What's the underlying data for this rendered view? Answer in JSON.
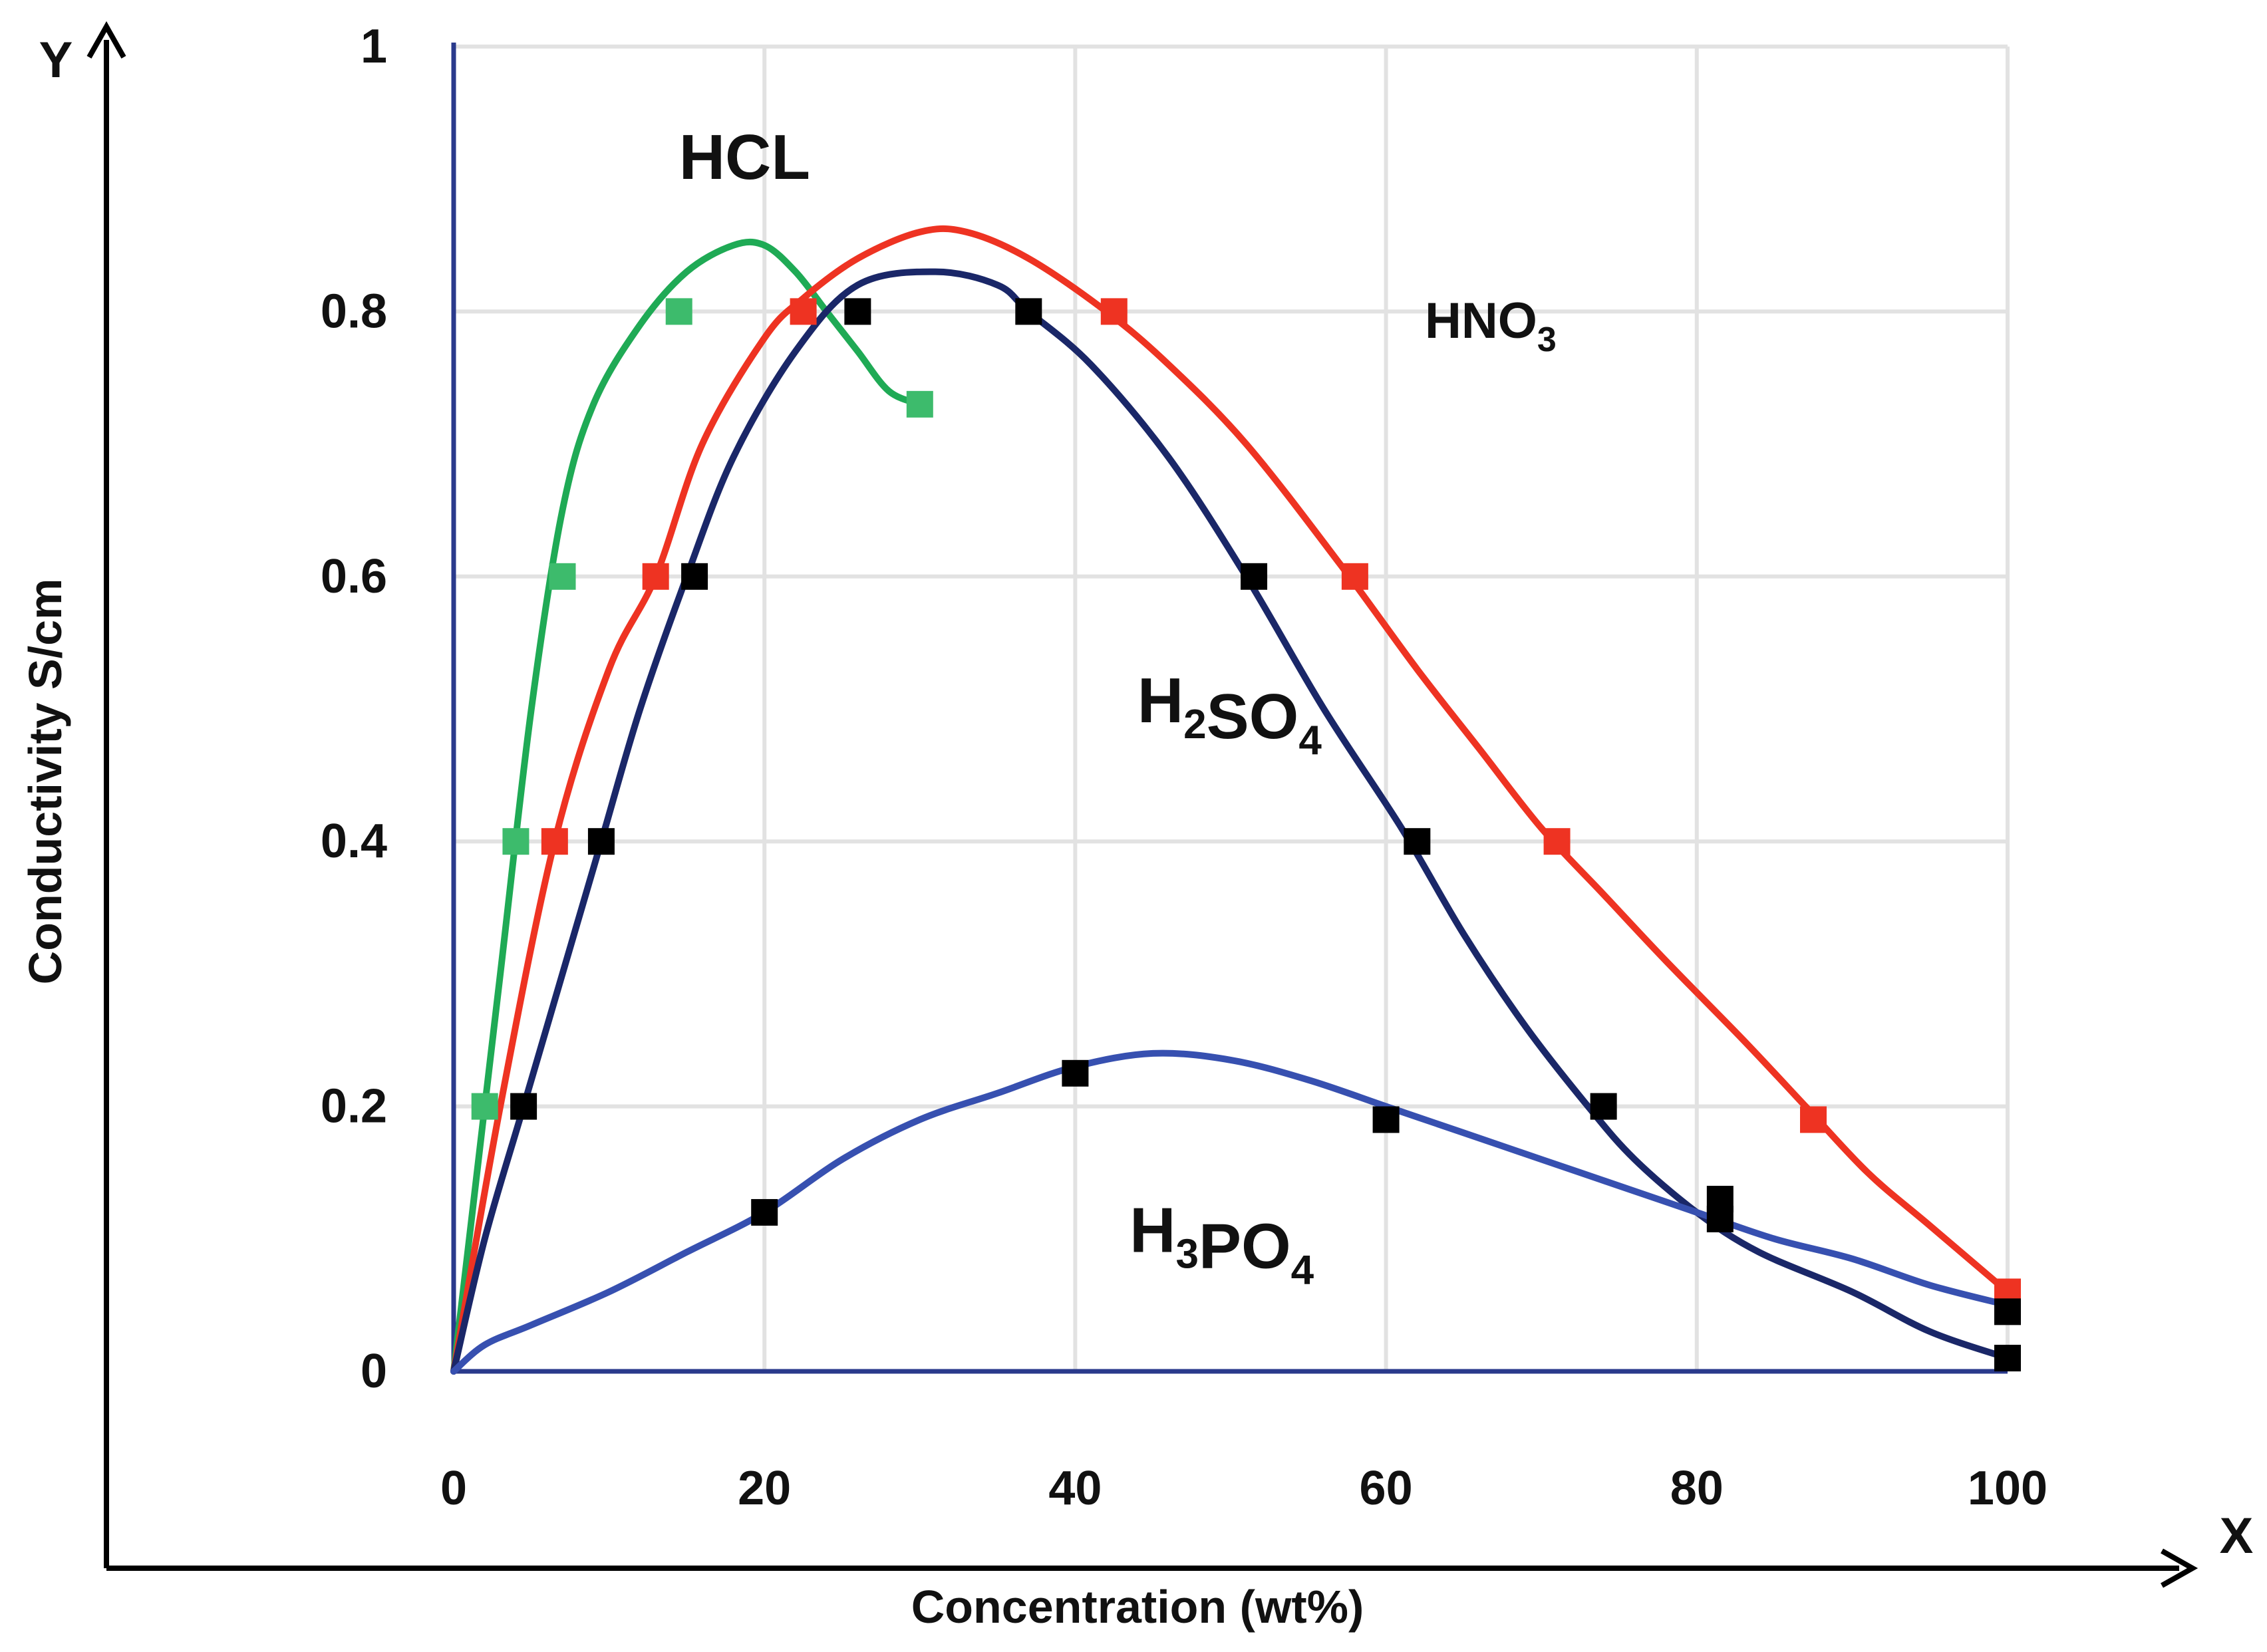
{
  "chart_data": {
    "type": "line",
    "title": "",
    "xlabel": "Concentration (wt%)",
    "ylabel": "Conductivity S/cm",
    "x_axis_letter": "X",
    "y_axis_letter": "Y",
    "xlim": [
      0,
      100
    ],
    "ylim": [
      0,
      1
    ],
    "grid": true,
    "x_ticks": [
      {
        "value": 0,
        "label": "0"
      },
      {
        "value": 20,
        "label": "20"
      },
      {
        "value": 40,
        "label": "40"
      },
      {
        "value": 60,
        "label": "60"
      },
      {
        "value": 80,
        "label": "80"
      },
      {
        "value": 100,
        "label": "100"
      }
    ],
    "y_ticks": [
      {
        "value": 0,
        "label": "0"
      },
      {
        "value": 0.2,
        "label": "0.2"
      },
      {
        "value": 0.4,
        "label": "0.4"
      },
      {
        "value": 0.6,
        "label": "0.6"
      },
      {
        "value": 0.8,
        "label": "0.8"
      },
      {
        "value": 1,
        "label": "1"
      }
    ],
    "series": [
      {
        "name": "HCL",
        "label_parts": [
          {
            "t": "HCL",
            "sub": false
          }
        ],
        "label_style": "large",
        "label_anchor": [
          14.5,
          0.9
        ],
        "color": "#1faa55",
        "marker_color": "#3dbb6c",
        "curve": [
          [
            0,
            0
          ],
          [
            1,
            0.1
          ],
          [
            3,
            0.3
          ],
          [
            5,
            0.5
          ],
          [
            7,
            0.65
          ],
          [
            9,
            0.73
          ],
          [
            12,
            0.79
          ],
          [
            15,
            0.83
          ],
          [
            18,
            0.85
          ],
          [
            20,
            0.85
          ],
          [
            22,
            0.83
          ],
          [
            24,
            0.8
          ],
          [
            26,
            0.77
          ],
          [
            28,
            0.74
          ],
          [
            30,
            0.73
          ]
        ],
        "points": [
          [
            2,
            0.2
          ],
          [
            4,
            0.4
          ],
          [
            7,
            0.6
          ],
          [
            14.5,
            0.8
          ],
          [
            30,
            0.73
          ]
        ]
      },
      {
        "name": "HNO3",
        "label_parts": [
          {
            "t": "HNO",
            "sub": false
          },
          {
            "t": "3",
            "sub": true
          }
        ],
        "label_style": "small",
        "label_anchor": [
          62.5,
          0.78
        ],
        "color": "#ee3322",
        "marker_color": "#ee3322",
        "curve": [
          [
            0,
            0
          ],
          [
            3,
            0.2
          ],
          [
            6.5,
            0.4
          ],
          [
            10,
            0.53
          ],
          [
            13,
            0.6
          ],
          [
            16,
            0.7
          ],
          [
            20,
            0.78
          ],
          [
            22.5,
            0.81
          ],
          [
            26,
            0.84
          ],
          [
            30,
            0.86
          ],
          [
            33,
            0.86
          ],
          [
            37,
            0.84
          ],
          [
            42,
            0.8
          ],
          [
            46,
            0.76
          ],
          [
            51,
            0.7
          ],
          [
            57,
            0.61
          ],
          [
            62,
            0.53
          ],
          [
            66,
            0.47
          ],
          [
            70,
            0.41
          ],
          [
            74,
            0.36
          ],
          [
            78,
            0.31
          ],
          [
            83,
            0.25
          ],
          [
            87,
            0.2
          ],
          [
            91,
            0.15
          ],
          [
            95,
            0.11
          ],
          [
            100,
            0.06
          ]
        ],
        "points": [
          [
            6.5,
            0.4
          ],
          [
            13,
            0.6
          ],
          [
            22.5,
            0.8
          ],
          [
            42.5,
            0.8
          ],
          [
            58,
            0.6
          ],
          [
            71,
            0.4
          ],
          [
            87.5,
            0.19
          ],
          [
            100,
            0.06
          ]
        ]
      },
      {
        "name": "H2SO4",
        "label_parts": [
          {
            "t": "H",
            "sub": false
          },
          {
            "t": "2",
            "sub": true
          },
          {
            "t": "SO",
            "sub": false
          },
          {
            "t": "4",
            "sub": true
          }
        ],
        "label_style": "large",
        "label_anchor": [
          44,
          0.49
        ],
        "color": "#1a2768",
        "marker_color": "#000000",
        "curve": [
          [
            0,
            0
          ],
          [
            2,
            0.1
          ],
          [
            4.5,
            0.2
          ],
          [
            7,
            0.3
          ],
          [
            9.5,
            0.4
          ],
          [
            12,
            0.5
          ],
          [
            15,
            0.6
          ],
          [
            18,
            0.69
          ],
          [
            22,
            0.77
          ],
          [
            26,
            0.82
          ],
          [
            31,
            0.83
          ],
          [
            35,
            0.82
          ],
          [
            37,
            0.8
          ],
          [
            41,
            0.76
          ],
          [
            46,
            0.69
          ],
          [
            51,
            0.6
          ],
          [
            56,
            0.5
          ],
          [
            61,
            0.41
          ],
          [
            65,
            0.33
          ],
          [
            69,
            0.26
          ],
          [
            73,
            0.2
          ],
          [
            76,
            0.16
          ],
          [
            80,
            0.12
          ],
          [
            84,
            0.09
          ],
          [
            90,
            0.06
          ],
          [
            95,
            0.03
          ],
          [
            100,
            0.01
          ]
        ],
        "points": [
          [
            4.5,
            0.2
          ],
          [
            9.5,
            0.4
          ],
          [
            15.5,
            0.6
          ],
          [
            26,
            0.8
          ],
          [
            37,
            0.8
          ],
          [
            51.5,
            0.6
          ],
          [
            62,
            0.4
          ],
          [
            74,
            0.2
          ],
          [
            81.5,
            0.13
          ],
          [
            100,
            0.01
          ]
        ]
      },
      {
        "name": "H3PO4",
        "label_parts": [
          {
            "t": "H",
            "sub": false
          },
          {
            "t": "3",
            "sub": true
          },
          {
            "t": "PO",
            "sub": false
          },
          {
            "t": "4",
            "sub": true
          }
        ],
        "label_style": "large",
        "label_anchor": [
          43.5,
          0.09
        ],
        "color": "#3750b0",
        "marker_color": "#000000",
        "curve": [
          [
            0,
            0
          ],
          [
            2,
            0.02
          ],
          [
            5,
            0.035
          ],
          [
            10,
            0.06
          ],
          [
            15,
            0.09
          ],
          [
            20,
            0.12
          ],
          [
            25,
            0.16
          ],
          [
            30,
            0.19
          ],
          [
            35,
            0.21
          ],
          [
            40,
            0.23
          ],
          [
            45,
            0.24
          ],
          [
            50,
            0.235
          ],
          [
            55,
            0.22
          ],
          [
            60,
            0.2
          ],
          [
            65,
            0.18
          ],
          [
            70,
            0.16
          ],
          [
            75,
            0.14
          ],
          [
            80,
            0.12
          ],
          [
            85,
            0.1
          ],
          [
            90,
            0.085
          ],
          [
            95,
            0.065
          ],
          [
            100,
            0.05
          ]
        ],
        "points": [
          [
            20,
            0.12
          ],
          [
            40,
            0.225
          ],
          [
            60,
            0.19
          ],
          [
            81.5,
            0.115
          ],
          [
            100,
            0.045
          ]
        ]
      }
    ]
  }
}
